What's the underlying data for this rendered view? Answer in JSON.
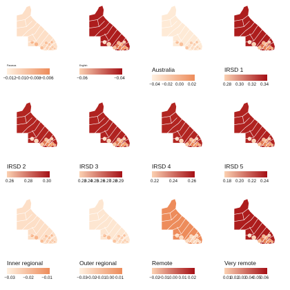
{
  "colors": {
    "low": "#fff5e6",
    "mid": "#f59a63",
    "high": "#a50f15",
    "border": "#ffffff"
  },
  "panels": [
    {
      "title": "Pacasus",
      "ticks": [
        "−0.012",
        "−0.010",
        "−0.008",
        "−0.006"
      ],
      "level": 0.12
    },
    {
      "title": "English",
      "ticks": [
        "−0.06",
        "−0.04"
      ],
      "level": 0.95
    },
    {
      "title": "Australia",
      "ticks": [
        "−0.04",
        "−0.02",
        "0.00",
        "0.02"
      ],
      "level": 0.06
    },
    {
      "title": "IRSD 1",
      "ticks": [
        "0.28",
        "0.30",
        "0.32",
        "0.34"
      ],
      "level": 0.95
    },
    {
      "title": "IRSD 2",
      "ticks": [
        "0.26",
        "0.28",
        "0.30"
      ],
      "level": 0.92
    },
    {
      "title": "IRSD 3",
      "ticks": [
        "0.23",
        "0.24",
        "0.25",
        "0.26",
        "0.27",
        "0.28",
        "0.29"
      ],
      "level": 0.93
    },
    {
      "title": "IRSD 4",
      "ticks": [
        "0.22",
        "0.24",
        "0.26"
      ],
      "level": 0.92
    },
    {
      "title": "IRSD 5",
      "ticks": [
        "0.18",
        "0.20",
        "0.22",
        "0.24"
      ],
      "level": 0.93
    },
    {
      "title": "Inner regional",
      "ticks": [
        "−0.03",
        "−0.02",
        "−0.01"
      ],
      "level": 0.12
    },
    {
      "title": "Outer regional",
      "ticks": [
        "−0.03",
        "−0.02",
        "−0.01",
        "0.00",
        "0.01"
      ],
      "level": 0.08
    },
    {
      "title": "Remote",
      "ticks": [
        "−0.02",
        "−0.01",
        "0.00",
        "0.01",
        "0.02"
      ],
      "level": 0.55
    },
    {
      "title": "Very remote",
      "ticks": [
        "0.01",
        "0.02",
        "0.03",
        "0.04",
        "0.05",
        "0.06"
      ],
      "level": 0.95
    }
  ]
}
